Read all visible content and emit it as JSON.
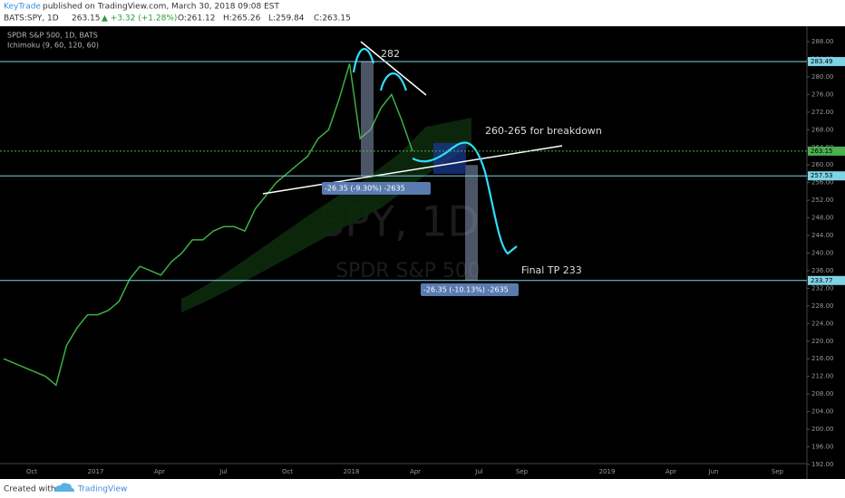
{
  "header": {
    "author": "KeyTrade",
    "published": "published on TradingView.com, March 30, 2018 09:08 EST",
    "symbol": "BATS:SPY, 1D",
    "last": "263.15",
    "change": "▲ +3.32 (+1.28%)",
    "open": "O:261.12",
    "high": "H:265.26",
    "low": "L:259.84",
    "close": "C:263.15"
  },
  "chart_data": {
    "type": "line",
    "legend": [
      "SPDR S&P 500, 1D, BATS",
      "Ichimoku (9, 60, 120, 60)"
    ],
    "watermark": "SPY, 1D",
    "watermark_sub": "SPDR S&P 500",
    "series": [
      {
        "name": "SPY",
        "color": "#3cb043",
        "values": [
          216,
          215,
          214,
          213,
          212,
          210,
          219,
          223,
          226,
          226,
          227,
          229,
          234,
          237,
          236,
          235,
          238,
          240,
          243,
          243,
          245,
          246,
          246,
          245,
          250,
          253,
          256,
          258,
          260,
          262,
          266,
          268,
          275,
          283,
          266,
          268,
          273,
          276,
          270,
          263.15
        ]
      }
    ],
    "levels": [
      {
        "value": 283.49,
        "color": "#7fd3e6"
      },
      {
        "value": 263.15,
        "color": "#4caf50"
      },
      {
        "value": 257.53,
        "color": "#7fd3e6"
      },
      {
        "value": 233.77,
        "color": "#7fd3e6"
      }
    ],
    "annotations": [
      "282",
      "260-265 for breakdown",
      "Final TP 233",
      "-26.35 (-9.30%) -2635",
      "-26.35 (-10.13%) -2635"
    ],
    "xtick_labels": [
      "Oct",
      "2017",
      "Apr",
      "Jul",
      "Oct",
      "2018",
      "Apr",
      "Jul",
      "Sep",
      "2019",
      "Apr",
      "Jun",
      "Sep"
    ],
    "ylim": [
      188.7,
      291.5
    ],
    "yticks": [
      {
        "value": 192,
        "label": "192.00"
      },
      {
        "value": 196,
        "label": "196.00"
      },
      {
        "value": 200,
        "label": "200.00"
      },
      {
        "value": 204,
        "label": "204.00"
      },
      {
        "value": 208,
        "label": "208.00"
      },
      {
        "value": 212,
        "label": "212.00"
      },
      {
        "value": 216,
        "label": "216.00"
      },
      {
        "value": 220,
        "label": "220.00"
      },
      {
        "value": 224,
        "label": "224.00"
      },
      {
        "value": 228,
        "label": "228.00"
      },
      {
        "value": 232,
        "label": "232.00"
      },
      {
        "value": 236,
        "label": "236.00"
      },
      {
        "value": 240,
        "label": "240.00"
      },
      {
        "value": 244,
        "label": "244.00"
      },
      {
        "value": 248,
        "label": "248.00"
      },
      {
        "value": 252,
        "label": "252.00"
      },
      {
        "value": 256,
        "label": "256.00"
      },
      {
        "value": 260,
        "label": "260.00"
      },
      {
        "value": 264,
        "label": "264.00"
      },
      {
        "value": 268,
        "label": "268.00"
      },
      {
        "value": 272,
        "label": "272.00"
      },
      {
        "value": 276,
        "label": "276.00"
      },
      {
        "value": 280,
        "label": "280.00"
      },
      {
        "value": 284,
        "label": "284.00"
      },
      {
        "value": 288,
        "label": "288.00"
      }
    ],
    "grid": false
  },
  "footer": {
    "created": "Created with",
    "brand": "TradingView"
  }
}
